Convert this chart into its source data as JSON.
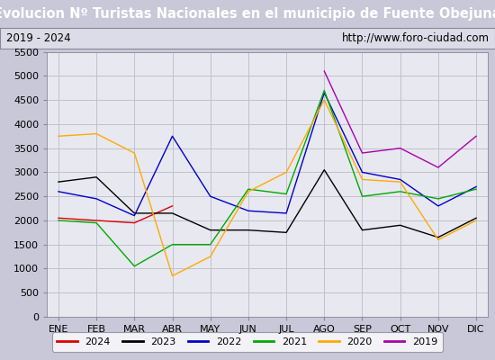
{
  "title": "Evolucion Nº Turistas Nacionales en el municipio de Fuente Obejuna",
  "subtitle_left": "2019 - 2024",
  "subtitle_right": "http://www.foro-ciudad.com",
  "months": [
    "ENE",
    "FEB",
    "MAR",
    "ABR",
    "MAY",
    "JUN",
    "JUL",
    "AGO",
    "SEP",
    "OCT",
    "NOV",
    "DIC"
  ],
  "ylim": [
    0,
    5500
  ],
  "yticks": [
    0,
    500,
    1000,
    1500,
    2000,
    2500,
    3000,
    3500,
    4000,
    4500,
    5000,
    5500
  ],
  "series_order": [
    "2024",
    "2023",
    "2022",
    "2021",
    "2020",
    "2019"
  ],
  "series": {
    "2024": {
      "color": "#dd0000",
      "values": [
        2050,
        2000,
        1950,
        2300,
        null,
        null,
        null,
        null,
        null,
        null,
        null,
        null
      ]
    },
    "2023": {
      "color": "#000000",
      "values": [
        2800,
        2900,
        2150,
        2150,
        1800,
        1800,
        1750,
        3050,
        1800,
        1900,
        1650,
        2050
      ]
    },
    "2022": {
      "color": "#0000cc",
      "values": [
        2600,
        2450,
        2100,
        3750,
        2500,
        2200,
        2150,
        4650,
        3000,
        2850,
        2300,
        2700
      ]
    },
    "2021": {
      "color": "#00aa00",
      "values": [
        2000,
        1950,
        1050,
        1500,
        1500,
        2650,
        2550,
        4700,
        2500,
        2600,
        2450,
        2650
      ]
    },
    "2020": {
      "color": "#ffaa00",
      "values": [
        3750,
        3800,
        3400,
        850,
        1250,
        2600,
        3000,
        4500,
        2850,
        2800,
        1600,
        2000
      ]
    },
    "2019": {
      "color": "#aa00aa",
      "values": [
        null,
        null,
        null,
        null,
        null,
        null,
        null,
        5100,
        3400,
        3500,
        3100,
        3750
      ]
    }
  },
  "outer_bg": "#c8c8d8",
  "title_bg_color": "#4f7fc4",
  "title_color": "#ffffff",
  "subtitle_bg": "#dcdce8",
  "plot_bg_color": "#e8e8f0",
  "grid_color": "#c0c0d0",
  "title_fontsize": 10.5,
  "subtitle_fontsize": 8.5,
  "tick_fontsize": 8,
  "legend_fontsize": 8
}
